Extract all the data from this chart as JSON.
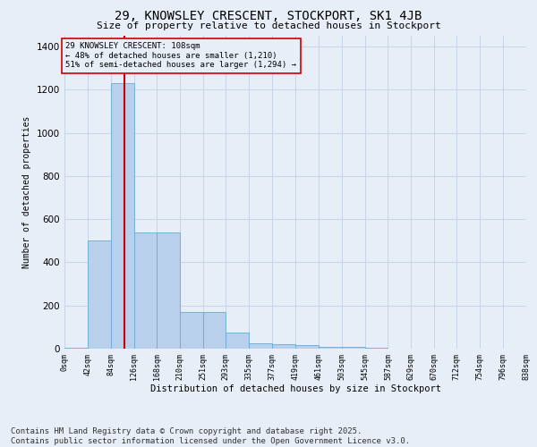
{
  "title": "29, KNOWSLEY CRESCENT, STOCKPORT, SK1 4JB",
  "subtitle": "Size of property relative to detached houses in Stockport",
  "xlabel": "Distribution of detached houses by size in Stockport",
  "ylabel": "Number of detached properties",
  "heights": [
    5,
    500,
    1230,
    540,
    540,
    170,
    170,
    75,
    25,
    20,
    15,
    10,
    10,
    5,
    0,
    0,
    0,
    0,
    0,
    0
  ],
  "bin_edges": [
    0,
    42,
    84,
    126,
    168,
    210,
    251,
    293,
    335,
    377,
    419,
    461,
    503,
    545,
    587,
    629,
    670,
    712,
    754,
    796,
    838
  ],
  "bar_color": "#b8d0ec",
  "bar_edge_color": "#6aaad4",
  "grid_color": "#c8d4e8",
  "bg_color": "#e8eef8",
  "annotation_text": "29 KNOWSLEY CRESCENT: 108sqm\n← 48% of detached houses are smaller (1,210)\n51% of semi-detached houses are larger (1,294) →",
  "vline_x": 108,
  "vline_color": "#cc0000",
  "annotation_box_color": "#cc0000",
  "ylim": [
    0,
    1450
  ],
  "yticks": [
    0,
    200,
    400,
    600,
    800,
    1000,
    1200,
    1400
  ],
  "x_labels": [
    "0sqm",
    "42sqm",
    "84sqm",
    "126sqm",
    "168sqm",
    "210sqm",
    "251sqm",
    "293sqm",
    "335sqm",
    "377sqm",
    "419sqm",
    "461sqm",
    "503sqm",
    "545sqm",
    "587sqm",
    "629sqm",
    "670sqm",
    "712sqm",
    "754sqm",
    "796sqm",
    "838sqm"
  ],
  "footer": "Contains HM Land Registry data © Crown copyright and database right 2025.\nContains public sector information licensed under the Open Government Licence v3.0.",
  "title_fontsize": 10,
  "subtitle_fontsize": 8,
  "footer_fontsize": 6.5,
  "ann_fontsize": 6.5,
  "ylabel_fontsize": 7,
  "xlabel_fontsize": 7.5
}
